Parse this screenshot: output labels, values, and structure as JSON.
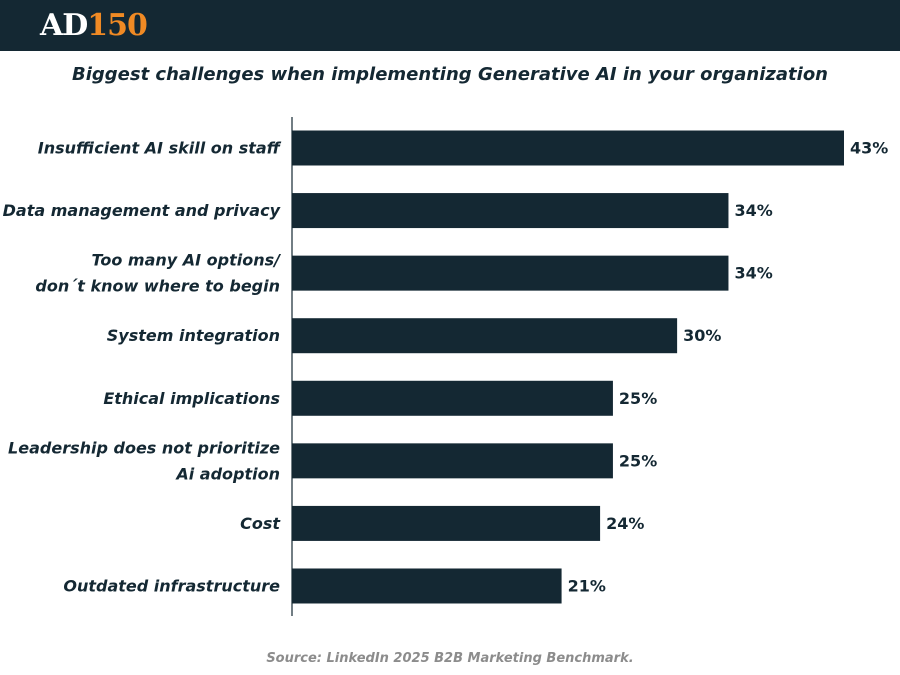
{
  "header": {
    "logo_text": "AD",
    "logo_number": "150"
  },
  "chart_data": {
    "type": "bar",
    "orientation": "horizontal",
    "title": "Biggest challenges when implementing Generative AI in your organization",
    "categories": [
      [
        "Insufficient AI skill on staff"
      ],
      [
        "Data management and privacy"
      ],
      [
        "Too many AI options/",
        "don´t know where to begin"
      ],
      [
        "System integration"
      ],
      [
        "Ethical implications"
      ],
      [
        "Leadership does not prioritize",
        "Ai adoption"
      ],
      [
        "Cost"
      ],
      [
        "Outdated infrastructure"
      ]
    ],
    "values": [
      43,
      34,
      34,
      30,
      25,
      25,
      24,
      21
    ],
    "value_labels": [
      "43%",
      "34%",
      "34%",
      "30%",
      "25%",
      "25%",
      "24%",
      "21%"
    ],
    "xlim": [
      0,
      43
    ],
    "xlabel": "",
    "ylabel": "",
    "grid": false,
    "legend": "none",
    "bar_color": "#142833"
  },
  "footer": {
    "source": "Source: LinkedIn 2025 B2B Marketing Benchmark."
  }
}
